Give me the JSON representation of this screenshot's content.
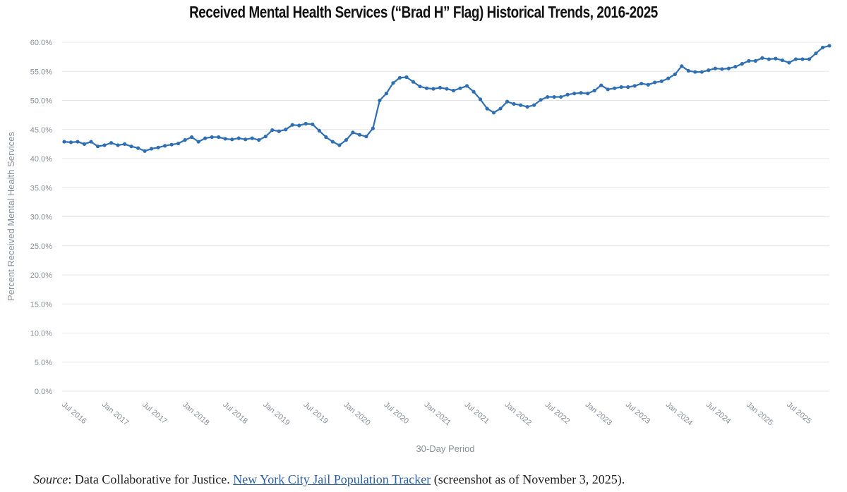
{
  "title": "Received Mental Health Services (“Brad H” Flag) Historical Trends, 2016-2025",
  "chart_data": {
    "type": "line",
    "title": "Received Mental Health Services (“Brad H” Flag) Historical Trends, 2016-2025",
    "xlabel": "30-Day Period",
    "ylabel": "Percent Received Mental Health Services",
    "ylim": [
      0,
      60
    ],
    "yticks": [
      "0.0%",
      "5.0%",
      "10.0%",
      "15.0%",
      "20.0%",
      "25.0%",
      "30.0%",
      "35.0%",
      "40.0%",
      "45.0%",
      "50.0%",
      "55.0%",
      "60.0%"
    ],
    "xticks": [
      "Jul 2016",
      "Jan 2017",
      "Jul 2017",
      "Jan 2018",
      "Jul 2018",
      "Jan 2019",
      "Jul 2019",
      "Jan 2020",
      "Jul 2020",
      "Jan 2021",
      "Jul 2021",
      "Jan 2022",
      "Jul 2022",
      "Jan 2023",
      "Jul 2023",
      "Jan 2024",
      "Jul 2024",
      "Jan 2025",
      "Jul 2025"
    ],
    "grid": true,
    "color": "#2e6fb4",
    "series": [
      {
        "name": "Percent Received Mental Health Services",
        "values": [
          42.9,
          42.8,
          42.9,
          42.5,
          42.9,
          42.1,
          42.3,
          42.7,
          42.3,
          42.5,
          42.1,
          41.8,
          41.3,
          41.7,
          41.9,
          42.2,
          42.4,
          42.6,
          43.2,
          43.7,
          42.9,
          43.5,
          43.7,
          43.7,
          43.4,
          43.3,
          43.5,
          43.3,
          43.5,
          43.2,
          43.8,
          44.9,
          44.7,
          45.0,
          45.8,
          45.7,
          46.0,
          45.9,
          44.8,
          43.7,
          42.9,
          42.3,
          43.2,
          44.5,
          44.1,
          43.8,
          45.2,
          50.0,
          51.2,
          53.0,
          53.9,
          54.0,
          53.2,
          52.4,
          52.1,
          52.0,
          52.2,
          52.0,
          51.7,
          52.1,
          52.5,
          51.5,
          50.2,
          48.6,
          47.9,
          48.6,
          49.8,
          49.4,
          49.2,
          48.9,
          49.2,
          50.1,
          50.6,
          50.6,
          50.6,
          51.0,
          51.2,
          51.3,
          51.2,
          51.7,
          52.6,
          51.9,
          52.1,
          52.3,
          52.3,
          52.5,
          52.9,
          52.7,
          53.1,
          53.3,
          53.8,
          54.5,
          55.9,
          55.1,
          54.9,
          54.9,
          55.2,
          55.5,
          55.4,
          55.5,
          55.8,
          56.3,
          56.8,
          56.8,
          57.3,
          57.1,
          57.2,
          56.9,
          56.5,
          57.1,
          57.1,
          57.1,
          58.1,
          59.1,
          59.4
        ]
      }
    ]
  },
  "source": {
    "label": "Source",
    "text_before": ": Data Collaborative for Justice. ",
    "link_text": "New York City Jail Population Tracker",
    "text_after": " (screenshot as of November 3, 2025)."
  }
}
